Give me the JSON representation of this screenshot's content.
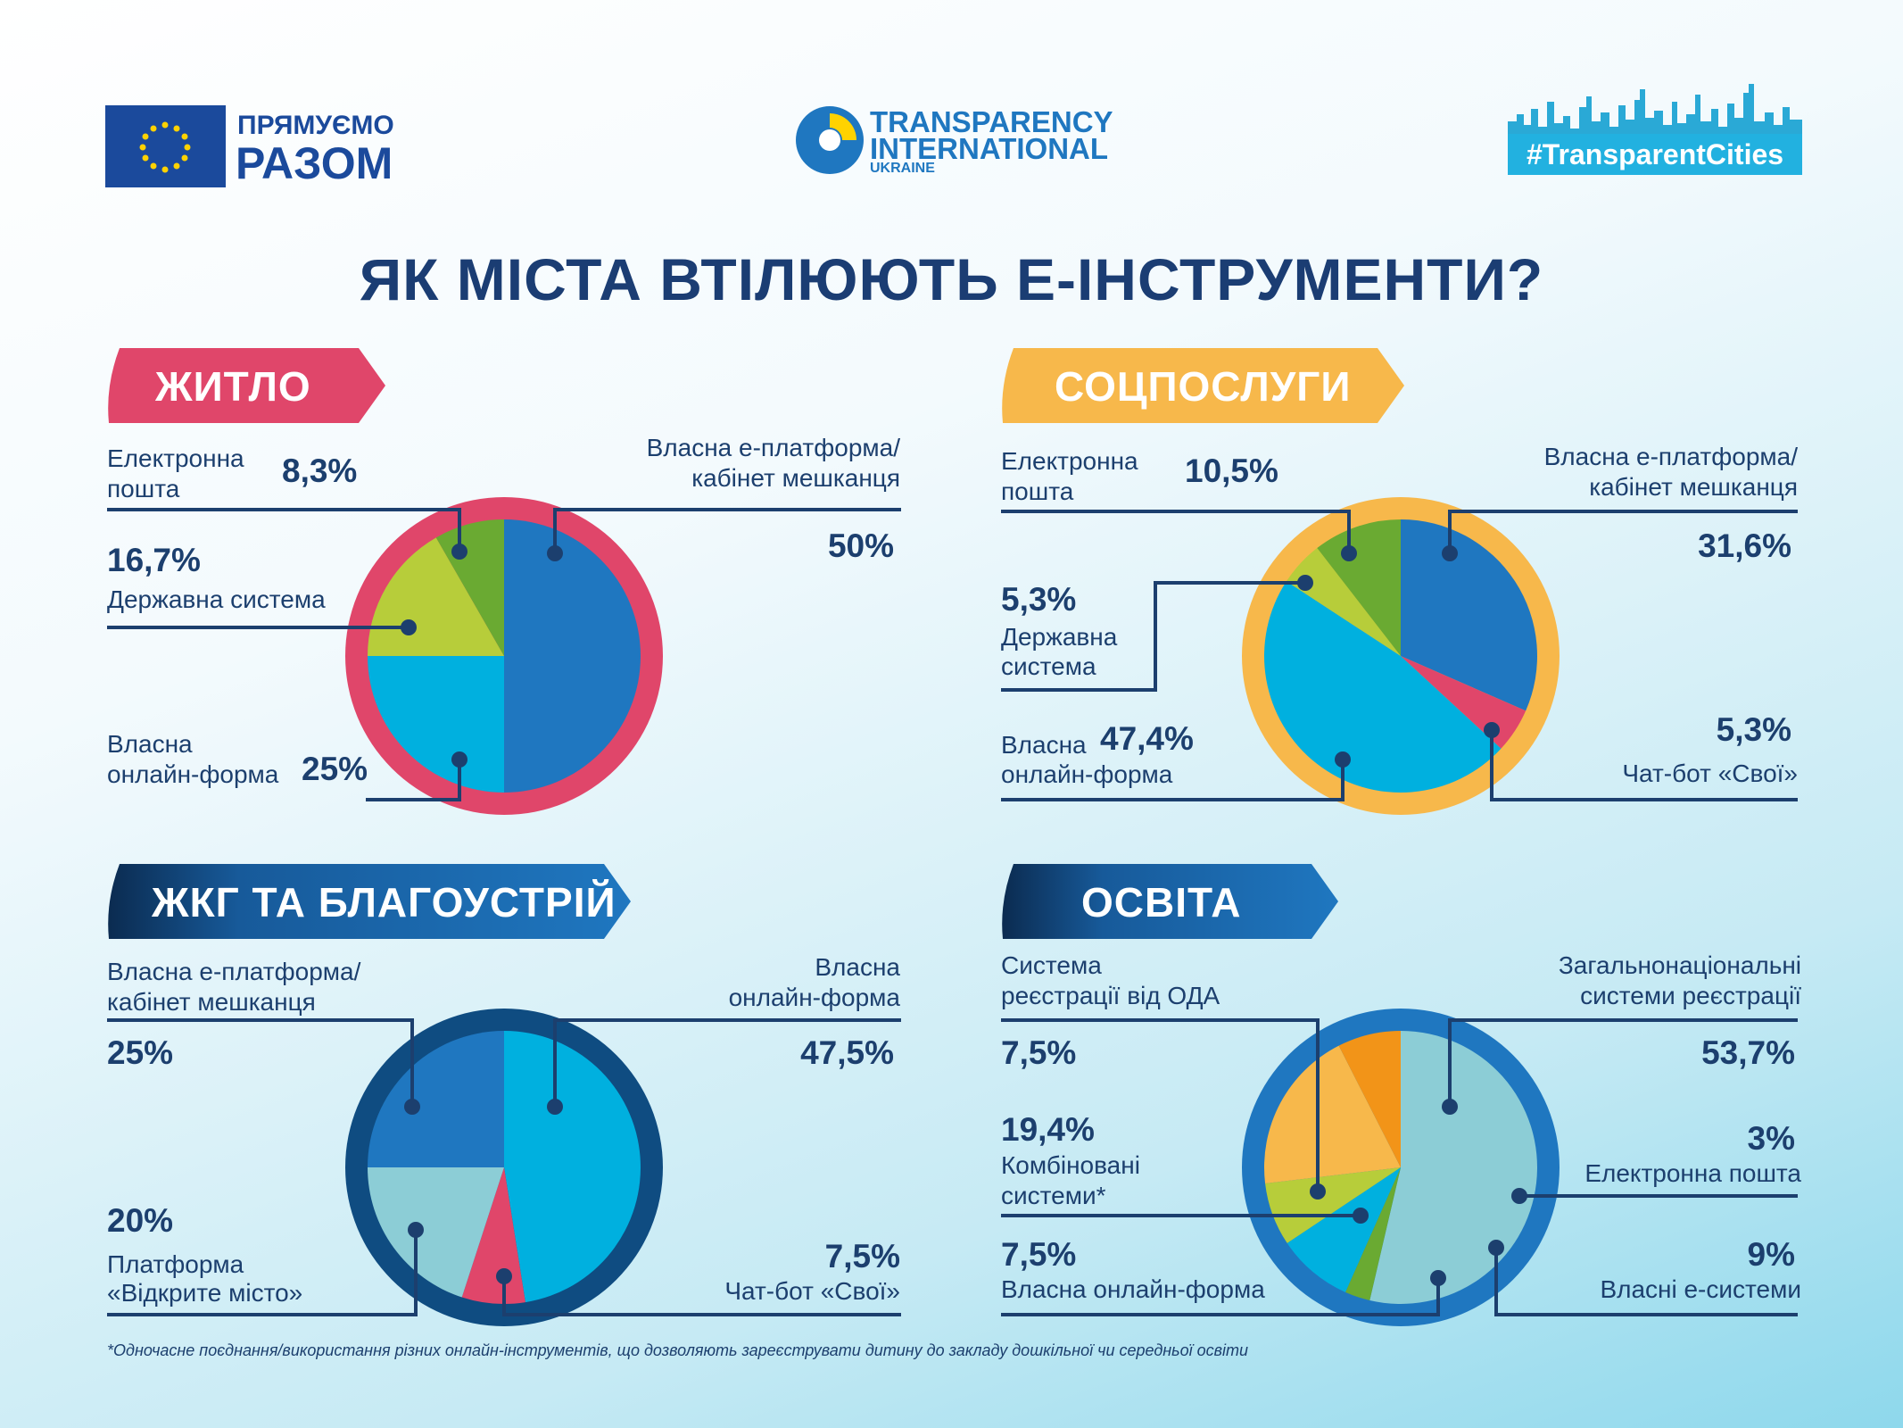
{
  "header": {
    "eu_text_line1": "ПРЯМУЄМО",
    "eu_text_line2": "РАЗОМ",
    "ti_line1": "TRANSPARENCY",
    "ti_line2": "INTERNATIONAL",
    "ti_line3": "UKRAINE",
    "hashtag": "#TransparentCities"
  },
  "title": "ЯК МІСТА ВТІЛЮЮТЬ Е-ІНСТРУМЕНТИ?",
  "sections": {
    "zhytlo": {
      "banner": "ЖИТЛО",
      "email_label": [
        "Електронна",
        "пошта"
      ],
      "email_pct": "8,3%",
      "platform_label": [
        "Власна е-платформа/",
        "кабінет мешканця"
      ],
      "platform_pct": "50%",
      "state_pct": "16,7%",
      "state_label": "Державна система",
      "form_label": [
        "Власна",
        "онлайн-форма"
      ],
      "form_pct": "25%"
    },
    "sotsposlugy": {
      "banner": "СОЦПОСЛУГИ",
      "email_label": [
        "Електронна",
        "пошта"
      ],
      "email_pct": "10,5%",
      "platform_label": [
        "Власна е-платформа/",
        "кабінет мешканця"
      ],
      "platform_pct": "31,6%",
      "state_pct": "5,3%",
      "state_label": [
        "Державна",
        "система"
      ],
      "form_label": [
        "Власна",
        "онлайн-форма"
      ],
      "form_pct": "47,4%",
      "chatbot_pct": "5,3%",
      "chatbot_label": "Чат-бот «Свої»"
    },
    "zhkg": {
      "banner": "ЖКГ ТА БЛАГОУСТРІЙ",
      "platform_label": [
        "Власна е-платформа/",
        "кабінет мешканця"
      ],
      "platform_pct": "25%",
      "form_label": [
        "Власна",
        "онлайн-форма"
      ],
      "form_pct": "47,5%",
      "open_pct": "20%",
      "open_label": [
        "Платформа",
        "«Відкрите місто»"
      ],
      "chatbot_pct": "7,5%",
      "chatbot_label": "Чат-бот «Свої»"
    },
    "osvita": {
      "banner": "ОСВІТА",
      "oda_label": [
        "Система",
        "реєстрації від ОДА"
      ],
      "oda_pct": "7,5%",
      "national_label": [
        "Загальнонаціональні",
        "системи реєстрації"
      ],
      "national_pct": "53,7%",
      "combined_pct": "19,4%",
      "combined_label": [
        "Комбіновані",
        "системи*"
      ],
      "email_pct": "3%",
      "email_label": "Електронна пошта",
      "form_pct": "7,5%",
      "form_label": "Власна онлайн-форма",
      "own_pct": "9%",
      "own_label": "Власні е-системи"
    }
  },
  "footnote": "*Одночасне поєднання/використання різних онлайн-інструментів, що дозволяють зареєструвати дитину до закладу дошкільної чи середньої освіти",
  "chart_data": [
    {
      "type": "pie",
      "title": "ЖИТЛО",
      "ring_color": "#e0466a",
      "slices": [
        {
          "label": "Власна е-платформа/кабінет мешканця",
          "value": 50,
          "color": "#1f77c0"
        },
        {
          "label": "Власна онлайн-форма",
          "value": 25,
          "color": "#00b0df"
        },
        {
          "label": "Державна система",
          "value": 16.7,
          "color": "#b7cd3a"
        },
        {
          "label": "Електронна пошта",
          "value": 8.3,
          "color": "#6aaa32"
        }
      ]
    },
    {
      "type": "pie",
      "title": "СОЦПОСЛУГИ",
      "ring_color": "#f7b84b",
      "slices": [
        {
          "label": "Власна е-платформа/кабінет мешканця",
          "value": 31.6,
          "color": "#1f77c0"
        },
        {
          "label": "Чат-бот «Свої»",
          "value": 5.3,
          "color": "#e0466a"
        },
        {
          "label": "Власна онлайн-форма",
          "value": 47.4,
          "color": "#00b0df"
        },
        {
          "label": "Державна система",
          "value": 5.3,
          "color": "#b7cd3a"
        },
        {
          "label": "Електронна пошта",
          "value": 10.5,
          "color": "#6aaa32"
        }
      ]
    },
    {
      "type": "pie",
      "title": "ЖКГ ТА БЛАГОУСТРІЙ",
      "ring_color": "#0f4c81",
      "slices": [
        {
          "label": "Власна онлайн-форма",
          "value": 47.5,
          "color": "#00b0df"
        },
        {
          "label": "Чат-бот «Свої»",
          "value": 7.5,
          "color": "#e0466a"
        },
        {
          "label": "Платформа «Відкрите місто»",
          "value": 20,
          "color": "#8ccdd6"
        },
        {
          "label": "Власна е-платформа/кабінет мешканця",
          "value": 25,
          "color": "#1f77c0"
        }
      ]
    },
    {
      "type": "pie",
      "title": "ОСВІТА",
      "ring_color": "#1f77c0",
      "slices": [
        {
          "label": "Загальнонаціональні системи реєстрації",
          "value": 53.7,
          "color": "#8ccdd6"
        },
        {
          "label": "Електронна пошта",
          "value": 3,
          "color": "#6aaa32"
        },
        {
          "label": "Власні е-системи",
          "value": 9,
          "color": "#00b0df"
        },
        {
          "label": "Власна онлайн-форма",
          "value": 7.5,
          "color": "#b7cd3a"
        },
        {
          "label": "Комбіновані системи*",
          "value": 19.4,
          "color": "#f7b84b"
        },
        {
          "label": "Система реєстрації від ОДА",
          "value": 7.5,
          "color": "#f29418"
        }
      ]
    }
  ]
}
